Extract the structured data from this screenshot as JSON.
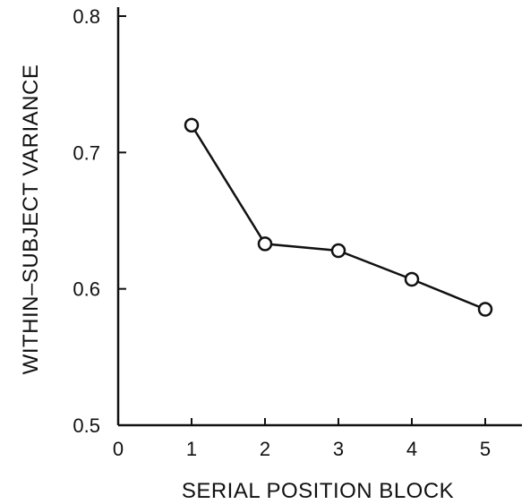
{
  "chart_data": {
    "type": "line",
    "title": "",
    "xlabel": "SERIAL POSITION BLOCK",
    "ylabel": "WITHIN–SUBJECT VARIANCE",
    "xlim": [
      0,
      5.5
    ],
    "ylim": [
      0.5,
      0.8
    ],
    "x_ticks": [
      0,
      1,
      2,
      3,
      4,
      5
    ],
    "x_tick_labels": [
      "0",
      "1",
      "2",
      "3",
      "4",
      "5"
    ],
    "y_ticks": [
      0.5,
      0.6,
      0.7,
      0.8
    ],
    "y_tick_labels": [
      "0.5",
      "0.6",
      "0.7",
      "0.8"
    ],
    "grid": false,
    "legend": "none",
    "series": [
      {
        "x": [
          1,
          2,
          3,
          4,
          5
        ],
        "values": [
          0.72,
          0.633,
          0.628,
          0.607,
          0.585
        ],
        "marker": "open-circle",
        "color": "#111111"
      }
    ]
  }
}
